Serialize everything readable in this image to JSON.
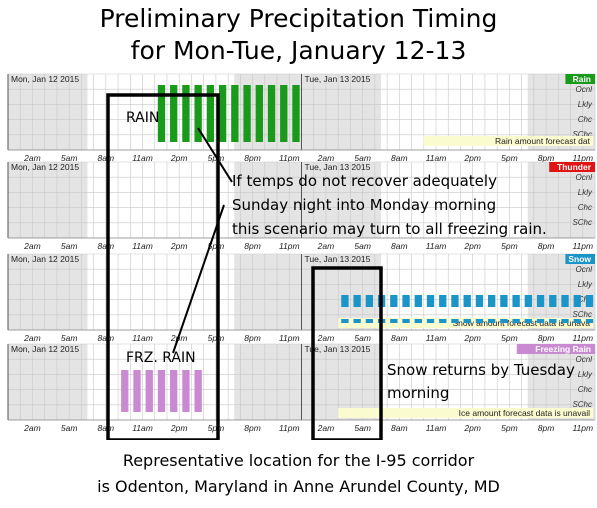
{
  "title_line1": "Preliminary Precipitation Timing",
  "title_line2": "for Mon-Tue, January 12-13",
  "footer_line1": "Representative location for the I-95 corridor",
  "footer_line2": "is Odenton, Maryland in Anne Arundel County, MD",
  "annotations": {
    "rain_label": "RAIN",
    "frz_label": "FRZ. RAIN",
    "scenario_line1": "If temps do not recover adequately",
    "scenario_line2": "Sunday night into Monday morning",
    "scenario_line3": "this scenario may turn to all freezing rain.",
    "snow_line1": "Snow returns by Tuesday",
    "snow_line2": "morning"
  },
  "chart_data": {
    "type": "bar",
    "x_axis": {
      "day_labels": [
        "Mon, Jan 12 2015",
        "Tue, Jan 13 2015"
      ],
      "tick_labels": [
        "2am",
        "5am",
        "8am",
        "11am",
        "2pm",
        "5pm",
        "8pm",
        "11pm",
        "2am",
        "5am",
        "8am",
        "11am",
        "2pm",
        "5pm",
        "8pm",
        "11pm"
      ],
      "hours_shown": 48
    },
    "y_categories": [
      "Ocnl",
      "Lkly",
      "Chc",
      "SChc"
    ],
    "panels": [
      {
        "name": "Rain",
        "color": "#1a9a1a",
        "label_color": "#1a9a1a",
        "note": "Rain amount forecast dat",
        "bars": {
          "start_hour": 12,
          "end_hour": 24,
          "level": "Ocnl"
        },
        "dashed": false
      },
      {
        "name": "Thunder",
        "color": "#e01414",
        "label_color": "#e01414",
        "note": "",
        "bars": null,
        "dashed": false
      },
      {
        "name": "Snow",
        "color": "#1b94c8",
        "label_color": "#1b94c8",
        "note": "Snow amount forecast data is unava",
        "bars": {
          "start_hour": 27,
          "end_hour": 48,
          "level": "Chc"
        },
        "dashed": true
      },
      {
        "name": "Freezing Rain",
        "color": "#c98ad2",
        "label_color": "#c98ad2",
        "note": "Ice amount forecast data is unavail",
        "bars": {
          "start_hour": 9,
          "end_hour": 16,
          "level": "Lkly"
        },
        "dashed": false
      }
    ]
  }
}
